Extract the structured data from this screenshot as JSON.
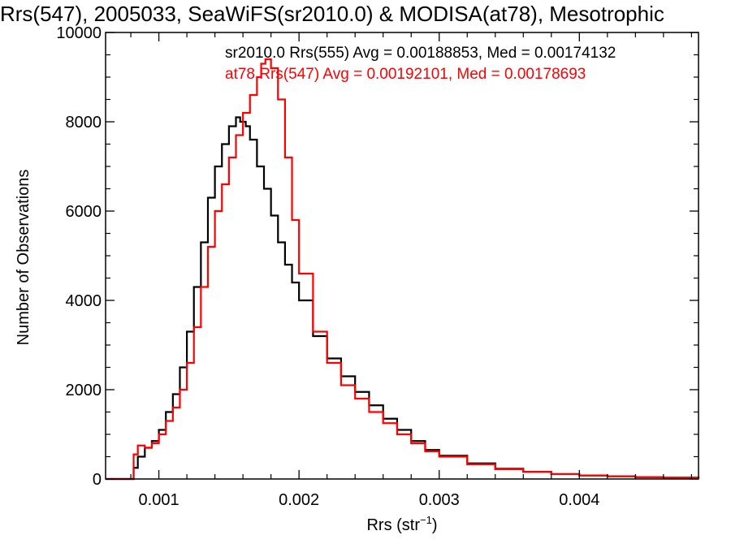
{
  "chart_data": {
    "type": "line",
    "title": "Rrs(547), 2005033, SeaWiFS(sr2010.0) & MODISA(at78), Mesotrophic",
    "xlabel": "Rrs (str",
    "xlabel_sup": "−1",
    "xlabel_end": ")",
    "ylabel": "Number of Observations",
    "xlim": [
      0.00062,
      0.00485
    ],
    "ylim": [
      0,
      10000
    ],
    "x_ticks": [
      0.001,
      0.002,
      0.003,
      0.004
    ],
    "x_tick_labels": [
      "0.001",
      "0.002",
      "0.003",
      "0.004"
    ],
    "y_ticks": [
      0,
      2000,
      4000,
      6000,
      8000,
      10000
    ],
    "y_tick_labels": [
      "0",
      "2000",
      "4000",
      "6000",
      "8000",
      "10000"
    ],
    "grid": false,
    "annotations": [
      {
        "text": "sr2010.0 Rrs(555) Avg = 0.00188853, Med = 0.00174132",
        "color": "#000000"
      },
      {
        "text": "at78 Rrs(547) Avg = 0.00192101, Med = 0.00178693",
        "color": "#ff0000"
      }
    ],
    "series": [
      {
        "color": "#000000",
        "x": [
          0.00062,
          0.0008,
          0.00082,
          0.00085,
          0.0009,
          0.00095,
          0.001,
          0.00105,
          0.0011,
          0.00115,
          0.0012,
          0.00125,
          0.0013,
          0.00135,
          0.0014,
          0.00145,
          0.0015,
          0.00155,
          0.00158,
          0.00162,
          0.00165,
          0.0017,
          0.00175,
          0.0018,
          0.00185,
          0.0019,
          0.00195,
          0.002,
          0.0021,
          0.0022,
          0.0023,
          0.0024,
          0.0025,
          0.0026,
          0.0027,
          0.0028,
          0.0029,
          0.003,
          0.0032,
          0.0034,
          0.0036,
          0.0038,
          0.004,
          0.0042,
          0.0044,
          0.0046,
          0.00485
        ],
        "y": [
          0,
          0,
          250,
          500,
          700,
          850,
          1100,
          1500,
          1900,
          2500,
          3300,
          4300,
          5300,
          6300,
          7000,
          7500,
          7900,
          8100,
          8000,
          7900,
          7600,
          7000,
          6500,
          5900,
          5300,
          4800,
          4400,
          4000,
          3200,
          2700,
          2300,
          1950,
          1650,
          1350,
          1100,
          850,
          650,
          520,
          350,
          230,
          160,
          110,
          80,
          60,
          40,
          30,
          20
        ]
      },
      {
        "color": "#ff0000",
        "x": [
          0.00062,
          0.0008,
          0.00082,
          0.00085,
          0.0009,
          0.00095,
          0.001,
          0.00105,
          0.0011,
          0.00115,
          0.0012,
          0.00125,
          0.0013,
          0.00135,
          0.0014,
          0.00145,
          0.0015,
          0.00155,
          0.0016,
          0.00165,
          0.0017,
          0.00173,
          0.00176,
          0.0018,
          0.00185,
          0.0019,
          0.00195,
          0.002,
          0.0021,
          0.0022,
          0.0023,
          0.0024,
          0.0025,
          0.0026,
          0.0027,
          0.0028,
          0.0029,
          0.003,
          0.0032,
          0.0034,
          0.0036,
          0.0038,
          0.004,
          0.0042,
          0.0044,
          0.0046,
          0.00485
        ],
        "y": [
          0,
          0,
          550,
          750,
          700,
          800,
          1000,
          1300,
          1600,
          2000,
          2600,
          3400,
          4300,
          5200,
          6000,
          6600,
          7200,
          7700,
          8200,
          8600,
          9000,
          9300,
          9400,
          9200,
          8500,
          7200,
          5800,
          4600,
          3300,
          2600,
          2100,
          1800,
          1500,
          1250,
          1000,
          800,
          620,
          500,
          330,
          220,
          160,
          110,
          80,
          60,
          40,
          30,
          20
        ]
      }
    ]
  }
}
